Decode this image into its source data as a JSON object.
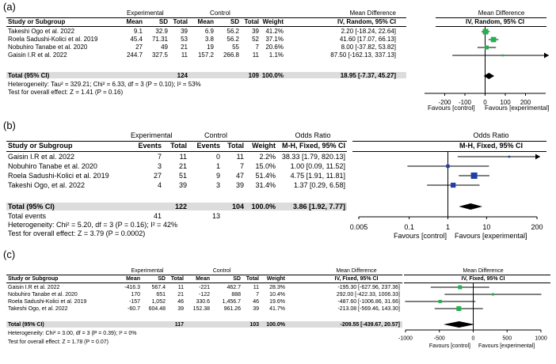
{
  "chart_data": [
    {
      "type": "forest",
      "panel_label": "(a)",
      "group1_label": "Experimental",
      "group2_label": "Control",
      "effect_header": "Mean Difference",
      "effect_subheader": "IV, Random, 95% CI",
      "columns": [
        "Study or Subgroup",
        "Mean",
        "SD",
        "Total",
        "Mean",
        "SD",
        "Total",
        "Weight",
        "Mean Difference",
        "IV, Random, 95% CI"
      ],
      "studies": [
        {
          "name": "Takeshi Ogo et al. 2022",
          "cells": [
            "9.1",
            "32.9",
            "39",
            "6.9",
            "56.2",
            "39",
            "41.2%"
          ],
          "ci_text": "2.20 [-18.24, 22.64]",
          "est": 2.2,
          "lo": -18.24,
          "hi": 22.64,
          "w": 41.2
        },
        {
          "name": "Roela Sadushi-Kolici et al. 2019",
          "cells": [
            "45.4",
            "71.31",
            "53",
            "3.8",
            "56.2",
            "52",
            "37.1%"
          ],
          "ci_text": "41.60 [17.07, 66.13]",
          "est": 41.6,
          "lo": 17.07,
          "hi": 66.13,
          "w": 37.1
        },
        {
          "name": "Nobuhiro Tanabe et al. 2020",
          "cells": [
            "27",
            "49",
            "21",
            "19",
            "55",
            "7",
            "20.6%"
          ],
          "ci_text": "8.00 [-37.82, 53.82]",
          "est": 8.0,
          "lo": -37.82,
          "hi": 53.82,
          "w": 20.6
        },
        {
          "name": "Gaisin I.R et al. 2022",
          "cells": [
            "244.7",
            "327.5",
            "11",
            "157.2",
            "266.8",
            "11",
            "1.1%"
          ],
          "ci_text": "87.50 [-162.13, 337.13]",
          "est": 87.5,
          "lo": -162.13,
          "hi": 337.13,
          "w": 1.1
        }
      ],
      "total": {
        "label": "Total (95% CI)",
        "n1": "124",
        "n2": "109",
        "weight": "100.0%",
        "ci_text": "18.95 [-7.37, 45.27]",
        "est": 18.95,
        "lo": -7.37,
        "hi": 45.27
      },
      "extra_lines": [
        "Heterogeneity: Tau² = 329.21; Chi² = 6.33, df = 3 (P = 0.10); I² = 53%",
        "Test for overall effect: Z = 1.41 (P = 0.16)"
      ],
      "axis": {
        "scale": "linear",
        "min": -300,
        "max": 300,
        "ticks": [
          -200,
          -100,
          0,
          100,
          200
        ],
        "tick_labels": [
          "-200",
          "-100",
          "0",
          "100",
          "200"
        ],
        "null": 0
      },
      "favours_left": "Favours [control]",
      "favours_right": "Favours [experimental]"
    },
    {
      "type": "forest",
      "panel_label": "(b)",
      "group1_label": "Experimental",
      "group2_label": "Control",
      "effect_header": "Odds Ratio",
      "effect_subheader": "M-H, Fixed, 95% CI",
      "columns": [
        "Study or Subgroup",
        "Events",
        "Total",
        "Events",
        "Total",
        "Weight",
        "Odds Ratio",
        "M-H, Fixed, 95% CI"
      ],
      "studies": [
        {
          "name": "Gaisin I.R et al. 2022",
          "cells": [
            "7",
            "11",
            "0",
            "11",
            "2.2%"
          ],
          "ci_text": "38.33 [1.79, 820.13]",
          "est": 38.33,
          "lo": 1.79,
          "hi": 820.13,
          "w": 2.2
        },
        {
          "name": "Nobuhiro Tanabe et al. 2020",
          "cells": [
            "3",
            "21",
            "1",
            "7",
            "15.0%"
          ],
          "ci_text": "1.00 [0.09, 11.52]",
          "est": 1.0,
          "lo": 0.09,
          "hi": 11.52,
          "w": 15.0
        },
        {
          "name": "Roela Sadushi-Kolici et al. 2019",
          "cells": [
            "27",
            "51",
            "9",
            "47",
            "51.4%"
          ],
          "ci_text": "4.75 [1.91, 11.81]",
          "est": 4.75,
          "lo": 1.91,
          "hi": 11.81,
          "w": 51.4
        },
        {
          "name": "Takeshi Ogo, et al. 2022",
          "cells": [
            "4",
            "39",
            "3",
            "39",
            "31.4%"
          ],
          "ci_text": "1.37 [0.29, 6.58]",
          "est": 1.37,
          "lo": 0.29,
          "hi": 6.58,
          "w": 31.4
        }
      ],
      "total": {
        "label": "Total (95% CI)",
        "n1": "122",
        "n2": "104",
        "weight": "100.0%",
        "ci_text": "3.86 [1.92, 7.77]",
        "est": 3.86,
        "lo": 1.92,
        "hi": 7.77
      },
      "total_events": {
        "label": "Total events",
        "e1": "41",
        "e2": "13"
      },
      "extra_lines": [
        "Heterogeneity: Chi² = 5.20, df = 3 (P = 0.16); I² = 42%",
        "Test for overall effect: Z = 3.79 (P = 0.0002)"
      ],
      "axis": {
        "scale": "log",
        "min": 0.005,
        "max": 200,
        "ticks": [
          0.005,
          0.1,
          1,
          10,
          200
        ],
        "tick_labels": [
          "0.005",
          "0.1",
          "1",
          "10",
          "200"
        ],
        "null": 1
      },
      "favours_left": "Favours [control]",
      "favours_right": "Favours [experimental]"
    },
    {
      "type": "forest",
      "panel_label": "(c)",
      "group1_label": "Experimental",
      "group2_label": "Control",
      "effect_header": "Mean Difference",
      "effect_subheader": "IV, Fixed, 95% CI",
      "columns": [
        "Study or Subgroup",
        "Mean",
        "SD",
        "Total",
        "Mean",
        "SD",
        "Total",
        "Weight",
        "Mean Difference",
        "IV, Fixed, 95% CI"
      ],
      "studies": [
        {
          "name": "Gaisin I.R et al. 2022",
          "cells": [
            "-416.3",
            "567.4",
            "11",
            "-221",
            "462.7",
            "11",
            "28.3%"
          ],
          "ci_text": "-195.30 [-627.96, 237.36]",
          "est": -195.3,
          "lo": -627.96,
          "hi": 237.36,
          "w": 28.3
        },
        {
          "name": "Nobuhiro Tanabe et al. 2020",
          "cells": [
            "170",
            "651",
            "21",
            "-122",
            "888",
            "7",
            "10.4%"
          ],
          "ci_text": "292.00 [-422.33, 1006.33]",
          "est": 292.0,
          "lo": -422.33,
          "hi": 1006.33,
          "w": 10.4
        },
        {
          "name": "Roela Sadushi-Kolici et al. 2019",
          "cells": [
            "-157",
            "1,052",
            "46",
            "330.6",
            "1,456.7",
            "46",
            "19.6%"
          ],
          "ci_text": "-487.60 [-1006.86, 31.66]",
          "est": -487.6,
          "lo": -1006.86,
          "hi": 31.66,
          "w": 19.6
        },
        {
          "name": "Takeshi Ogo, et al. 2022",
          "cells": [
            "-60.7",
            "604.48",
            "39",
            "152.38",
            "961.26",
            "39",
            "41.7%"
          ],
          "ci_text": "-213.08 [-569.46, 143.30]",
          "est": -213.08,
          "lo": -569.46,
          "hi": 143.3,
          "w": 41.7
        }
      ],
      "total": {
        "label": "Total (95% CI)",
        "n1": "117",
        "n2": "103",
        "weight": "100.0%",
        "ci_text": "-209.55 [-439.67, 20.57]",
        "est": -209.55,
        "lo": -439.67,
        "hi": 20.57
      },
      "extra_lines": [
        "Heterogeneity: Chi² = 3.00, df = 3 (P = 0.39); I² = 0%",
        "Test for overall effect: Z = 1.78 (P = 0.07)"
      ],
      "axis": {
        "scale": "linear",
        "min": -1000,
        "max": 1000,
        "ticks": [
          -1000,
          -500,
          0,
          500,
          1000
        ],
        "tick_labels": [
          "-1000",
          "-500",
          "0",
          "500",
          "1000"
        ],
        "null": 0
      },
      "favours_left": "Favours [control]",
      "favours_right": "Favours [experimental]"
    }
  ]
}
